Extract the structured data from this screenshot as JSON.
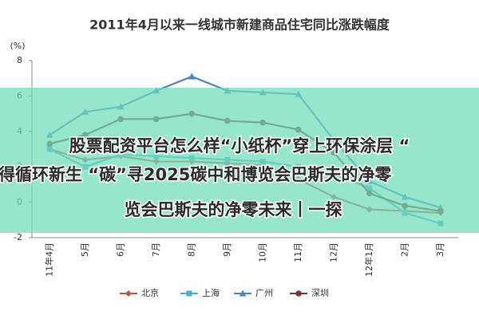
{
  "chart_data": {
    "type": "line",
    "title": "2011年4月以来一线城市新建商品住宅同比涨跌幅度",
    "y_label": "(%)",
    "categories": [
      "11年4月",
      "5月",
      "6月",
      "7月",
      "8月",
      "9月",
      "10月",
      "11月",
      "12月",
      "12年1月",
      "2月",
      "3月"
    ],
    "series": [
      {
        "name": "北京",
        "color": "#c0504d",
        "marker": "diamond",
        "values": [
          3.0,
          2.4,
          2.6,
          2.3,
          2.3,
          2.2,
          2.1,
          1.3,
          0.3,
          -0.4,
          -0.5,
          -0.6
        ]
      },
      {
        "name": "上海",
        "color": "#4bacc6",
        "marker": "square",
        "values": [
          3.0,
          2.0,
          2.7,
          2.6,
          2.5,
          2.4,
          2.3,
          2.0,
          1.6,
          0.8,
          -0.6,
          -1.2
        ]
      },
      {
        "name": "广州",
        "color": "#4f81bd",
        "marker": "triangle",
        "values": [
          3.8,
          5.1,
          5.4,
          6.3,
          7.1,
          6.3,
          6.2,
          6.1,
          3.5,
          1.2,
          0.3,
          -0.3
        ]
      },
      {
        "name": "深圳",
        "color": "#7b3535",
        "marker": "circle",
        "values": [
          3.3,
          3.8,
          4.7,
          4.7,
          5.0,
          4.6,
          4.5,
          4.1,
          2.8,
          0.5,
          -0.2,
          -0.5
        ]
      }
    ],
    "ylim": [
      -2,
      8
    ],
    "yticks": [
      -2,
      0,
      2,
      4,
      6,
      8
    ]
  },
  "overlay": {
    "lines": [
      "股票配资平台怎么样“小纸杯”穿上环保涂层 “",
      "得循环新生 “碳”寻2025碳中和博览会巴斯夫的净零",
      "览会巴斯夫的净零未来丨一探"
    ]
  }
}
